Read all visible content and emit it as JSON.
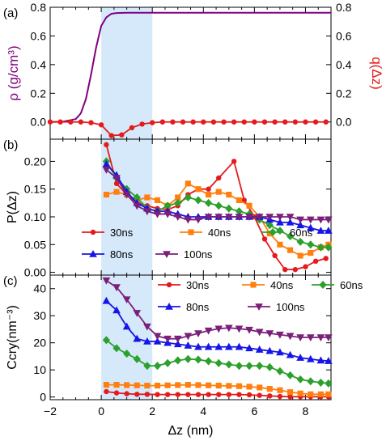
{
  "chart_data": [
    {
      "panel_label": "(a)",
      "type": "line",
      "xlim": [
        -2,
        9
      ],
      "highlight": {
        "x": [
          0,
          2
        ],
        "color": "#d6e9fb"
      },
      "left_axis": {
        "label": "ρ (g/cm³)",
        "ylim": [
          -0.12,
          0.8
        ],
        "ticks": [
          "0.0",
          "0.2",
          "0.4",
          "0.6",
          "0.8"
        ],
        "tick_values": [
          0,
          0.2,
          0.4,
          0.6,
          0.8
        ],
        "color": "#800080"
      },
      "right_axis": {
        "label": "q(Δz)",
        "ylim": [
          -0.12,
          0.8
        ],
        "ticks": [
          "0.0",
          "0.2",
          "0.4",
          "0.6",
          "0.8"
        ],
        "tick_values": [
          0,
          0.2,
          0.4,
          0.6,
          0.8
        ],
        "color": "#e41a1c"
      },
      "series": [
        {
          "axis": "left",
          "color": "#800080",
          "marker": "none",
          "x": [
            -2,
            -1.5,
            -1,
            -0.8,
            -0.6,
            -0.4,
            -0.2,
            0,
            0.2,
            0.4,
            0.6,
            1.0,
            2,
            4,
            6,
            9
          ],
          "y": [
            0,
            0.002,
            0.02,
            0.06,
            0.16,
            0.33,
            0.52,
            0.67,
            0.73,
            0.755,
            0.76,
            0.762,
            0.762,
            0.762,
            0.762,
            0.762
          ]
        },
        {
          "axis": "right",
          "color": "#e41a1c",
          "marker": "circle",
          "x": [
            -2,
            -1.6,
            -1.2,
            -0.8,
            -0.4,
            0,
            0.4,
            0.8,
            1.2,
            1.6,
            2,
            2.4,
            2.8,
            3.2,
            3.6,
            4,
            4.4,
            4.8,
            5.2,
            5.6,
            6,
            6.4,
            6.8,
            7.2,
            7.6,
            8,
            8.4,
            8.8
          ],
          "y": [
            0,
            0,
            0,
            0,
            -0.005,
            -0.02,
            -0.095,
            -0.09,
            -0.04,
            -0.015,
            -0.005,
            0,
            0,
            0,
            0,
            0,
            0,
            0,
            0,
            0,
            0,
            0,
            0,
            0,
            0,
            0,
            0,
            0
          ]
        }
      ]
    },
    {
      "panel_label": "(b)",
      "type": "line",
      "xlim": [
        -2,
        9
      ],
      "ylim": [
        -0.005,
        0.24
      ],
      "ylabel": "P(Δz)",
      "yticks": [
        "0.00",
        "0.05",
        "0.10",
        "0.15",
        "0.20"
      ],
      "ytick_values": [
        0,
        0.05,
        0.1,
        0.15,
        0.2
      ],
      "highlight": {
        "x": [
          0,
          2
        ],
        "color": "#d6e9fb"
      },
      "legend": {
        "placement": "lower-left",
        "columns": 3
      },
      "series": [
        {
          "name": "30ns",
          "color": "#e41a1c",
          "marker": "circle",
          "x": [
            0.2,
            0.6,
            1.0,
            1.4,
            1.8,
            2.2,
            2.6,
            3.0,
            3.4,
            3.8,
            4.2,
            4.6,
            5.2,
            5.6,
            6.0,
            6.4,
            6.8,
            7.2,
            7.6,
            8.0,
            8.4,
            8.8
          ],
          "y": [
            0.23,
            0.16,
            0.14,
            0.125,
            0.12,
            0.115,
            0.113,
            0.12,
            0.14,
            0.15,
            0.15,
            0.17,
            0.2,
            0.13,
            0.1,
            0.06,
            0.03,
            0.005,
            0.005,
            0.01,
            0.02,
            0.025
          ]
        },
        {
          "name": "40ns",
          "color": "#ff7f0e",
          "marker": "square",
          "x": [
            0.2,
            0.6,
            1.0,
            1.4,
            1.8,
            2.2,
            2.6,
            3.0,
            3.4,
            3.8,
            4.2,
            4.6,
            5.0,
            5.4,
            5.8,
            6.2,
            6.6,
            7.0,
            7.4,
            7.8,
            8.2,
            8.6,
            8.9
          ],
          "y": [
            0.14,
            0.145,
            0.14,
            0.13,
            0.135,
            0.13,
            0.12,
            0.135,
            0.16,
            0.15,
            0.14,
            0.145,
            0.14,
            0.13,
            0.12,
            0.1,
            0.07,
            0.05,
            0.04,
            0.03,
            0.035,
            0.045,
            0.05
          ]
        },
        {
          "name": "60ns",
          "color": "#2ca02c",
          "marker": "diamond",
          "x": [
            0.2,
            0.6,
            1.0,
            1.4,
            1.8,
            2.2,
            2.6,
            3.0,
            3.4,
            3.8,
            4.2,
            4.6,
            5.0,
            5.4,
            5.8,
            6.2,
            6.6,
            7.0,
            7.4,
            7.8,
            8.2,
            8.6,
            8.9
          ],
          "y": [
            0.2,
            0.17,
            0.15,
            0.135,
            0.115,
            0.11,
            0.12,
            0.125,
            0.135,
            0.13,
            0.125,
            0.12,
            0.115,
            0.11,
            0.105,
            0.095,
            0.085,
            0.075,
            0.065,
            0.055,
            0.05,
            0.045,
            0.045
          ]
        },
        {
          "name": "80ns",
          "color": "#1515e8",
          "marker": "triangle-up",
          "x": [
            0.2,
            0.6,
            1.0,
            1.4,
            1.8,
            2.2,
            2.6,
            3.0,
            3.4,
            3.8,
            4.2,
            4.6,
            5.0,
            5.4,
            5.8,
            6.2,
            6.6,
            7.0,
            7.4,
            7.8,
            8.2,
            8.6,
            8.9
          ],
          "y": [
            0.195,
            0.175,
            0.145,
            0.125,
            0.115,
            0.11,
            0.11,
            0.105,
            0.1,
            0.1,
            0.1,
            0.1,
            0.1,
            0.1,
            0.1,
            0.1,
            0.095,
            0.09,
            0.09,
            0.085,
            0.08,
            0.075,
            0.075
          ]
        },
        {
          "name": "100ns",
          "color": "#7a1f7a",
          "marker": "triangle-down",
          "x": [
            0.2,
            0.6,
            1.0,
            1.4,
            1.8,
            2.2,
            2.6,
            3.0,
            3.4,
            3.8,
            4.2,
            4.6,
            5.0,
            5.4,
            5.8,
            6.2,
            6.6,
            7.0,
            7.4,
            7.8,
            8.2,
            8.6,
            8.9
          ],
          "y": [
            0.185,
            0.17,
            0.14,
            0.12,
            0.11,
            0.105,
            0.105,
            0.1,
            0.095,
            0.095,
            0.1,
            0.1,
            0.1,
            0.1,
            0.1,
            0.1,
            0.1,
            0.1,
            0.1,
            0.095,
            0.095,
            0.095,
            0.095
          ]
        }
      ]
    },
    {
      "panel_label": "(c)",
      "type": "line",
      "xlim": [
        -2,
        9
      ],
      "ylim": [
        -1,
        45
      ],
      "ylabel": "Ccry(nm⁻³)",
      "yticks": [
        "0",
        "10",
        "20",
        "30",
        "40"
      ],
      "ytick_values": [
        0,
        10,
        20,
        30,
        40
      ],
      "xlabel": "Δz (nm)",
      "xticks": [
        "−2",
        "0",
        "2",
        "4",
        "6",
        "8"
      ],
      "xtick_values": [
        -2,
        0,
        2,
        4,
        6,
        8
      ],
      "highlight": {
        "x": [
          0,
          2
        ],
        "color": "#d6e9fb"
      },
      "legend": {
        "placement": "top-right",
        "columns": 3
      },
      "series": [
        {
          "name": "30ns",
          "color": "#e41a1c",
          "marker": "circle",
          "x": [
            0.2,
            0.6,
            1.0,
            1.4,
            1.8,
            2.2,
            2.6,
            3.0,
            3.4,
            3.8,
            4.2,
            4.6,
            5.0,
            5.4,
            5.8,
            6.2,
            6.6,
            7.0,
            7.4,
            7.8,
            8.2,
            8.6,
            8.9
          ],
          "y": [
            2,
            1.5,
            1.2,
            1.0,
            1.0,
            0.9,
            0.9,
            0.9,
            0.9,
            0.9,
            0.9,
            0.9,
            0.9,
            0.9,
            0.8,
            0.6,
            0.4,
            0.2,
            0.1,
            0.1,
            0.1,
            0.1,
            0.1
          ]
        },
        {
          "name": "40ns",
          "color": "#ff7f0e",
          "marker": "square",
          "x": [
            0.2,
            0.6,
            1.0,
            1.4,
            1.8,
            2.2,
            2.6,
            3.0,
            3.4,
            3.8,
            4.2,
            4.6,
            5.0,
            5.4,
            5.8,
            6.2,
            6.6,
            7.0,
            7.4,
            7.8,
            8.2,
            8.6,
            8.9
          ],
          "y": [
            4.5,
            4.5,
            4.4,
            4.3,
            4.2,
            4.2,
            4.3,
            4.4,
            4.5,
            4.4,
            4.3,
            4.2,
            4.1,
            4.0,
            3.8,
            3.5,
            3.0,
            2.5,
            1.8,
            1.3,
            1.0,
            1.0,
            1.0
          ]
        },
        {
          "name": "60ns",
          "color": "#2ca02c",
          "marker": "diamond",
          "x": [
            0.2,
            0.6,
            1.0,
            1.4,
            1.8,
            2.2,
            2.6,
            3.0,
            3.4,
            3.8,
            4.2,
            4.6,
            5.0,
            5.4,
            5.8,
            6.2,
            6.6,
            7.0,
            7.4,
            7.8,
            8.2,
            8.6,
            8.9
          ],
          "y": [
            21,
            18,
            16,
            14,
            11.5,
            11.5,
            12.5,
            13.5,
            14,
            13.8,
            13.2,
            12.5,
            12,
            11.5,
            11.5,
            11.5,
            11,
            9.5,
            8,
            6.5,
            5.8,
            5.3,
            5.0
          ]
        },
        {
          "name": "80ns",
          "color": "#1515e8",
          "marker": "triangle-up",
          "x": [
            0.2,
            0.6,
            1.0,
            1.4,
            1.8,
            2.2,
            2.6,
            3.0,
            3.4,
            3.8,
            4.2,
            4.6,
            5.0,
            5.4,
            5.8,
            6.2,
            6.6,
            7.0,
            7.4,
            7.8,
            8.2,
            8.6,
            8.9
          ],
          "y": [
            35.5,
            32,
            26,
            21.5,
            20.5,
            20.5,
            20,
            19.5,
            19,
            18.5,
            18.5,
            18.5,
            18.5,
            18.5,
            18,
            17.5,
            17,
            16.5,
            15.5,
            14.5,
            14,
            13.5,
            13.3
          ]
        },
        {
          "name": "100ns",
          "color": "#7a1f7a",
          "marker": "triangle-down",
          "x": [
            0.2,
            0.6,
            1.0,
            1.4,
            1.8,
            2.2,
            2.6,
            3.0,
            3.4,
            3.8,
            4.2,
            4.6,
            5.0,
            5.4,
            5.8,
            6.2,
            6.6,
            7.0,
            7.4,
            7.8,
            8.2,
            8.6,
            8.9
          ],
          "y": [
            43,
            40.5,
            36,
            31,
            26,
            22.5,
            21.5,
            21.5,
            22.5,
            23.5,
            24.5,
            25.2,
            25.5,
            25.2,
            24.8,
            24,
            23.5,
            23,
            22.5,
            22,
            22,
            22,
            22
          ]
        }
      ]
    }
  ]
}
